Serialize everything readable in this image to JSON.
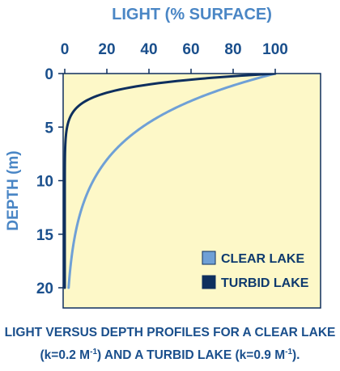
{
  "chart_data": {
    "type": "line",
    "xlabel": "LIGHT (% SURFACE)",
    "ylabel": "DEPTH (m)",
    "xlim": [
      0,
      100
    ],
    "ylim": [
      0,
      20
    ],
    "x_ticks": [
      0,
      20,
      40,
      60,
      80,
      100
    ],
    "y_ticks": [
      0,
      5,
      10,
      15,
      20
    ],
    "y_inverted": true,
    "grid": false,
    "legend_position": "bottom-right",
    "series": [
      {
        "name": "CLEAR LAKE",
        "k": 0.2,
        "color": "#6fa0d6",
        "depth": [
          0,
          1,
          2,
          3,
          4,
          5,
          6,
          8,
          10,
          12,
          14,
          16,
          18,
          20
        ],
        "light": [
          100,
          81.9,
          67.0,
          54.9,
          44.9,
          36.8,
          30.1,
          20.2,
          13.5,
          9.1,
          6.1,
          4.1,
          2.7,
          1.8
        ]
      },
      {
        "name": "TURBID LAKE",
        "k": 0.9,
        "color": "#0e2f5e",
        "depth": [
          0,
          0.5,
          1,
          1.5,
          2,
          3,
          4,
          5,
          6,
          8,
          10
        ],
        "light": [
          100,
          63.8,
          40.7,
          25.9,
          16.5,
          6.7,
          2.7,
          1.1,
          0.5,
          0.1,
          0.0
        ]
      }
    ]
  },
  "caption": {
    "line1": "LIGHT VERSUS DEPTH PROFILES FOR A CLEAR LAKE",
    "line2_pre": "(k=0.2 M",
    "line2_mid": ") AND A TURBID LAKE (k=0.9 M",
    "line2_end": ").",
    "superscript": "-1"
  }
}
